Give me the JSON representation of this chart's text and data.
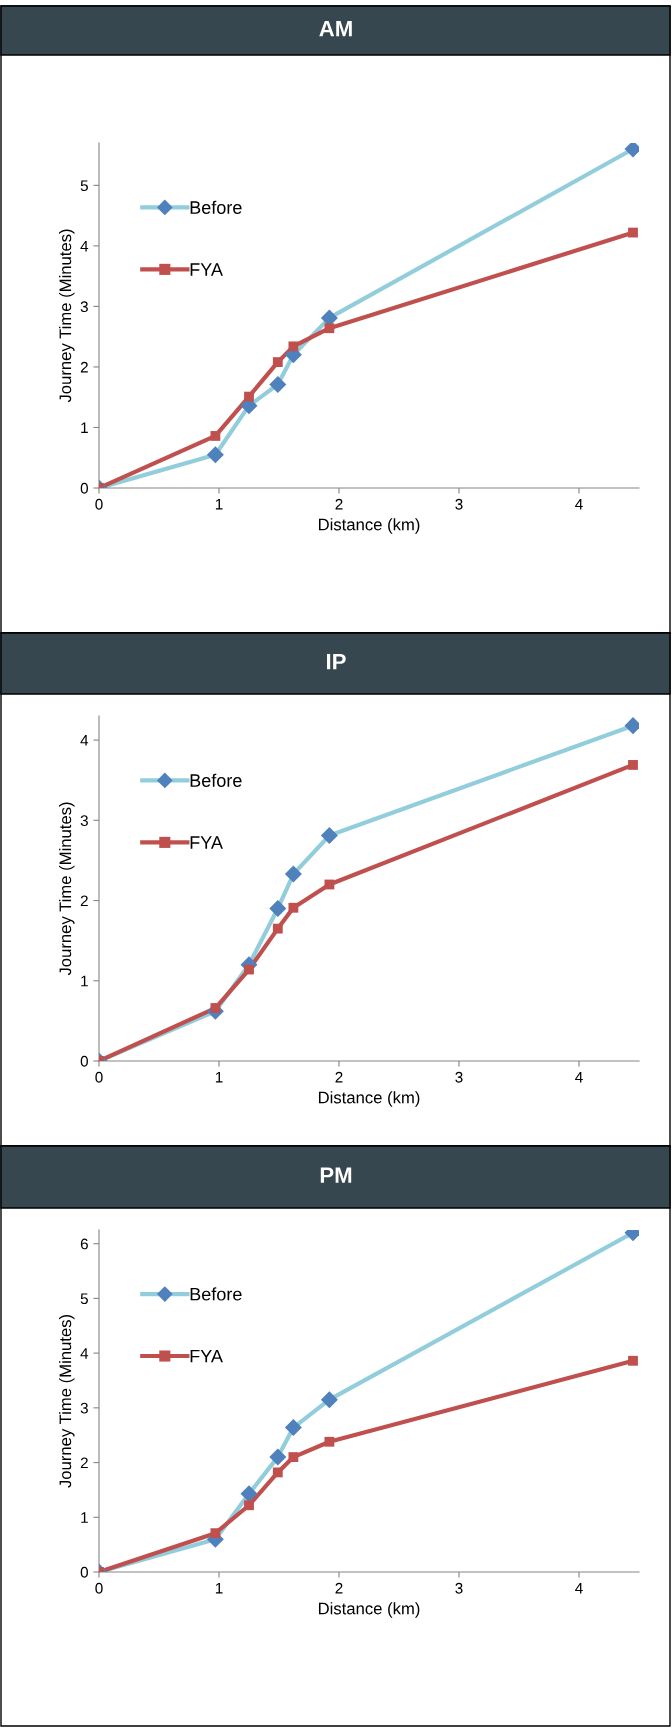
{
  "chart_data": [
    {
      "type": "line",
      "title": "AM",
      "xlabel": "Distance (km)",
      "ylabel": "Journey Time (Minutes)",
      "xlim": [
        0,
        4.5
      ],
      "xticks": [
        0,
        1,
        2,
        3,
        4
      ],
      "ylim": [
        0,
        5.7
      ],
      "yticks": [
        0,
        1,
        2,
        3,
        4,
        5
      ],
      "grid": false,
      "legend": "upper left",
      "series": [
        {
          "name": "Before",
          "color": "#92cddc",
          "colors": [
            "#4f81bd",
            "#4f81bd",
            "#4f81bd",
            "#4f81bd",
            "#4f81bd",
            "#4f81bd",
            "#4f81bd"
          ],
          "marker": "diamond",
          "x": [
            0,
            0.97,
            1.25,
            1.49,
            1.62,
            1.92,
            4.45
          ],
          "values": [
            0,
            0.55,
            1.36,
            1.71,
            2.2,
            2.81,
            5.6
          ]
        },
        {
          "name": "FYA",
          "color": "#c0504d",
          "marker": "square",
          "x": [
            0,
            0.97,
            1.25,
            1.49,
            1.62,
            1.92,
            4.45
          ],
          "values": [
            0,
            0.86,
            1.51,
            2.08,
            2.34,
            2.64,
            4.22
          ]
        }
      ]
    },
    {
      "type": "line",
      "title": "IP",
      "xlabel": "Distance (km)",
      "ylabel": "Journey Time (Minutes)",
      "xlim": [
        0,
        4.5
      ],
      "xticks": [
        0,
        1,
        2,
        3,
        4
      ],
      "ylim": [
        0,
        4.3
      ],
      "yticks": [
        0,
        1,
        2,
        3,
        4
      ],
      "grid": false,
      "legend": "upper left",
      "series": [
        {
          "name": "Before",
          "color": "#92cddc",
          "colors": [
            "#4f81bd",
            "#4f81bd",
            "#4f81bd",
            "#4f81bd",
            "#4f81bd",
            "#4f81bd",
            "#4f81bd"
          ],
          "marker": "diamond",
          "x": [
            0,
            0.97,
            1.25,
            1.49,
            1.62,
            1.92,
            4.45
          ],
          "values": [
            0,
            0.62,
            1.2,
            1.9,
            2.33,
            2.81,
            4.18
          ]
        },
        {
          "name": "FYA",
          "color": "#c0504d",
          "marker": "square",
          "x": [
            0,
            0.97,
            1.25,
            1.49,
            1.62,
            1.92,
            4.45
          ],
          "values": [
            0,
            0.66,
            1.14,
            1.65,
            1.91,
            2.2,
            3.69
          ]
        }
      ]
    },
    {
      "type": "line",
      "title": "PM",
      "xlabel": "Distance (km)",
      "ylabel": "Journey Time (Minutes)",
      "xlim": [
        0,
        4.5
      ],
      "xticks": [
        0,
        1,
        2,
        3,
        4
      ],
      "ylim": [
        0,
        6.25
      ],
      "yticks": [
        0,
        1,
        2,
        3,
        4,
        5,
        6
      ],
      "grid": false,
      "legend": "upper left",
      "series": [
        {
          "name": "Before",
          "color": "#92cddc",
          "colors": [
            "#4f81bd",
            "#4f81bd",
            "#4f81bd",
            "#4f81bd",
            "#4f81bd",
            "#4f81bd",
            "#4f81bd"
          ],
          "marker": "diamond",
          "x": [
            0,
            0.97,
            1.25,
            1.49,
            1.62,
            1.92,
            4.45
          ],
          "values": [
            0,
            0.6,
            1.43,
            2.1,
            2.64,
            3.15,
            6.2
          ]
        },
        {
          "name": "FYA",
          "color": "#c0504d",
          "marker": "square",
          "x": [
            0,
            0.97,
            1.25,
            1.49,
            1.62,
            1.92,
            4.45
          ],
          "values": [
            0,
            0.71,
            1.22,
            1.82,
            2.1,
            2.38,
            3.86
          ]
        }
      ]
    }
  ]
}
